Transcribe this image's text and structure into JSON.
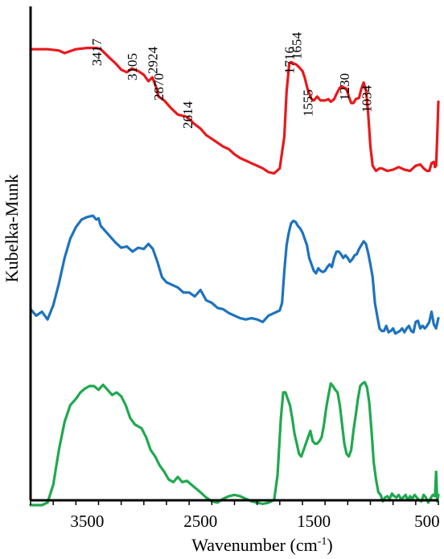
{
  "chart_data": {
    "type": "line",
    "xlabel": "Wavenumber (cm",
    "xlabel_sup": "-1",
    "xlabel_end": ")",
    "ylabel": "Kubelka-Munk",
    "x_reversed": true,
    "xlim": [
      4000,
      400
    ],
    "x_ticks": [
      3500,
      2500,
      1500,
      500
    ],
    "x_tick_labels": [
      "3500",
      "2500",
      "1500",
      "500"
    ],
    "x_minor_step": 200,
    "grid": false,
    "legend": "none",
    "peak_labels": [
      {
        "text": "3417",
        "x": 3417
      },
      {
        "text": "3105",
        "x": 3105
      },
      {
        "text": "2924",
        "x": 2924
      },
      {
        "text": "2870",
        "x": 2870
      },
      {
        "text": "2614",
        "x": 2614
      },
      {
        "text": "1716",
        "x": 1716
      },
      {
        "text": "1654",
        "x": 1654
      },
      {
        "text": "1555",
        "x": 1555
      },
      {
        "text": "1230",
        "x": 1230
      },
      {
        "text": "1034",
        "x": 1034
      }
    ],
    "series": [
      {
        "color": "#e8191c",
        "offset": 0,
        "x": [
          4000,
          3850,
          3750,
          3700,
          3600,
          3500,
          3417,
          3380,
          3300,
          3250,
          3200,
          3150,
          3105,
          3050,
          3000,
          2960,
          2924,
          2890,
          2870,
          2820,
          2760,
          2700,
          2614,
          2560,
          2500,
          2450,
          2400,
          2350,
          2300,
          2250,
          2200,
          2150,
          2100,
          2050,
          2000,
          1950,
          1900,
          1850,
          1800,
          1760,
          1740,
          1716,
          1700,
          1680,
          1654,
          1630,
          1600,
          1580,
          1555,
          1520,
          1500,
          1470,
          1440,
          1400,
          1370,
          1350,
          1320,
          1300,
          1270,
          1250,
          1230,
          1210,
          1190,
          1170,
          1150,
          1130,
          1100,
          1080,
          1060,
          1050,
          1040,
          1034,
          1020,
          1000,
          980,
          950,
          920,
          900,
          850,
          800,
          750,
          700,
          650,
          600,
          560,
          530,
          500,
          480,
          460,
          440,
          430,
          420,
          410,
          400
        ],
        "y": [
          0.02,
          0.02,
          0.03,
          0.05,
          0.02,
          0.01,
          0.01,
          0.02,
          0.09,
          0.13,
          0.18,
          0.2,
          0.17,
          0.19,
          0.22,
          0.27,
          0.24,
          0.32,
          0.39,
          0.42,
          0.48,
          0.53,
          0.55,
          0.6,
          0.64,
          0.69,
          0.72,
          0.75,
          0.78,
          0.8,
          0.84,
          0.87,
          0.89,
          0.91,
          0.93,
          0.95,
          0.98,
          0.99,
          0.95,
          0.7,
          0.35,
          0.13,
          0.12,
          0.13,
          0.14,
          0.16,
          0.19,
          0.24,
          0.33,
          0.41,
          0.42,
          0.39,
          0.42,
          0.42,
          0.41,
          0.43,
          0.41,
          0.37,
          0.32,
          0.31,
          0.32,
          0.33,
          0.39,
          0.44,
          0.44,
          0.41,
          0.4,
          0.33,
          0.28,
          0.31,
          0.34,
          0.38,
          0.52,
          0.78,
          0.93,
          0.97,
          0.95,
          0.95,
          0.97,
          0.96,
          0.94,
          0.96,
          0.97,
          0.93,
          0.92,
          0.95,
          0.97,
          0.97,
          0.91,
          0.9,
          0.94,
          0.93,
          0.7,
          0.43
        ]
      },
      {
        "color": "#1e73be",
        "offset": 1.3,
        "x": [
          4000,
          3950,
          3900,
          3850,
          3800,
          3750,
          3700,
          3650,
          3600,
          3550,
          3500,
          3450,
          3420,
          3400,
          3380,
          3350,
          3300,
          3250,
          3200,
          3150,
          3100,
          3050,
          3000,
          2960,
          2920,
          2880,
          2840,
          2800,
          2750,
          2700,
          2650,
          2600,
          2550,
          2500,
          2450,
          2400,
          2350,
          2300,
          2250,
          2200,
          2150,
          2100,
          2050,
          2000,
          1950,
          1900,
          1850,
          1800,
          1780,
          1760,
          1740,
          1720,
          1700,
          1680,
          1660,
          1640,
          1620,
          1600,
          1580,
          1560,
          1540,
          1520,
          1500,
          1480,
          1460,
          1440,
          1420,
          1400,
          1380,
          1360,
          1340,
          1320,
          1300,
          1280,
          1260,
          1240,
          1220,
          1200,
          1180,
          1160,
          1140,
          1120,
          1100,
          1080,
          1060,
          1040,
          1020,
          1000,
          980,
          960,
          940,
          920,
          900,
          880,
          860,
          840,
          820,
          800,
          780,
          760,
          740,
          720,
          700,
          680,
          660,
          640,
          620,
          600,
          580,
          560,
          540,
          520,
          500,
          480,
          460,
          440,
          420,
          400
        ],
        "y": [
          0.75,
          0.8,
          0.77,
          0.83,
          0.72,
          0.55,
          0.35,
          0.2,
          0.11,
          0.05,
          0.03,
          0.02,
          0.05,
          0.04,
          0.1,
          0.13,
          0.18,
          0.23,
          0.27,
          0.26,
          0.3,
          0.27,
          0.28,
          0.24,
          0.28,
          0.38,
          0.5,
          0.54,
          0.56,
          0.58,
          0.62,
          0.62,
          0.65,
          0.6,
          0.68,
          0.7,
          0.74,
          0.75,
          0.78,
          0.8,
          0.82,
          0.83,
          0.82,
          0.83,
          0.85,
          0.8,
          0.78,
          0.76,
          0.7,
          0.45,
          0.25,
          0.15,
          0.08,
          0.06,
          0.07,
          0.1,
          0.12,
          0.15,
          0.2,
          0.25,
          0.35,
          0.4,
          0.45,
          0.47,
          0.43,
          0.45,
          0.46,
          0.45,
          0.42,
          0.4,
          0.42,
          0.35,
          0.3,
          0.3,
          0.32,
          0.35,
          0.33,
          0.35,
          0.38,
          0.36,
          0.33,
          0.32,
          0.28,
          0.25,
          0.22,
          0.24,
          0.31,
          0.4,
          0.5,
          0.7,
          0.8,
          0.9,
          0.92,
          0.92,
          0.88,
          0.93,
          0.92,
          0.9,
          0.94,
          0.93,
          0.92,
          0.9,
          0.93,
          0.9,
          0.88,
          0.92,
          0.93,
          0.85,
          0.84,
          0.9,
          0.88,
          0.9,
          0.88,
          0.85,
          0.77,
          0.87,
          0.9,
          0.82
        ]
      },
      {
        "color": "#1fa94f",
        "offset": 2.6,
        "x": [
          4000,
          3950,
          3900,
          3850,
          3800,
          3750,
          3700,
          3650,
          3600,
          3560,
          3520,
          3480,
          3440,
          3400,
          3360,
          3320,
          3280,
          3240,
          3200,
          3160,
          3120,
          3080,
          3060,
          3020,
          2980,
          2940,
          2900,
          2860,
          2820,
          2780,
          2740,
          2700,
          2660,
          2620,
          2580,
          2540,
          2500,
          2450,
          2400,
          2350,
          2300,
          2250,
          2200,
          2150,
          2100,
          2050,
          2000,
          1950,
          1900,
          1850,
          1820,
          1790,
          1770,
          1750,
          1730,
          1710,
          1690,
          1670,
          1650,
          1630,
          1610,
          1590,
          1570,
          1550,
          1530,
          1510,
          1490,
          1470,
          1450,
          1430,
          1410,
          1390,
          1370,
          1350,
          1330,
          1310,
          1290,
          1270,
          1250,
          1230,
          1210,
          1190,
          1170,
          1150,
          1130,
          1110,
          1090,
          1070,
          1050,
          1030,
          1010,
          990,
          970,
          950,
          930,
          910,
          890,
          870,
          850,
          830,
          810,
          790,
          770,
          750,
          730,
          710,
          690,
          670,
          650,
          630,
          610,
          590,
          570,
          550,
          530,
          510,
          490,
          470,
          450,
          430,
          420,
          410,
          400
        ],
        "y": [
          0.98,
          0.98,
          0.98,
          0.96,
          0.82,
          0.55,
          0.33,
          0.2,
          0.15,
          0.1,
          0.07,
          0.05,
          0.05,
          0.08,
          0.04,
          0.08,
          0.12,
          0.1,
          0.13,
          0.2,
          0.3,
          0.35,
          0.36,
          0.38,
          0.45,
          0.55,
          0.6,
          0.67,
          0.72,
          0.78,
          0.8,
          0.76,
          0.8,
          0.79,
          0.82,
          0.85,
          0.88,
          0.92,
          0.95,
          0.96,
          0.93,
          0.91,
          0.9,
          0.91,
          0.93,
          0.95,
          0.96,
          0.97,
          0.96,
          0.94,
          0.75,
          0.3,
          0.1,
          0.1,
          0.15,
          0.2,
          0.3,
          0.42,
          0.5,
          0.58,
          0.6,
          0.55,
          0.5,
          0.45,
          0.4,
          0.48,
          0.5,
          0.5,
          0.48,
          0.45,
          0.35,
          0.22,
          0.12,
          0.03,
          0.05,
          0.08,
          0.1,
          0.2,
          0.35,
          0.5,
          0.58,
          0.6,
          0.55,
          0.4,
          0.28,
          0.15,
          0.05,
          0.03,
          0.02,
          0.06,
          0.18,
          0.4,
          0.65,
          0.78,
          0.88,
          0.9,
          0.95,
          0.92,
          0.91,
          0.93,
          0.89,
          0.91,
          0.92,
          0.9,
          0.93,
          0.92,
          0.9,
          0.94,
          0.91,
          0.93,
          0.9,
          0.92,
          0.94,
          0.95,
          0.9,
          0.92,
          0.96,
          0.93,
          0.9,
          0.91,
          0.72,
          0.95,
          0.9
        ]
      }
    ]
  }
}
